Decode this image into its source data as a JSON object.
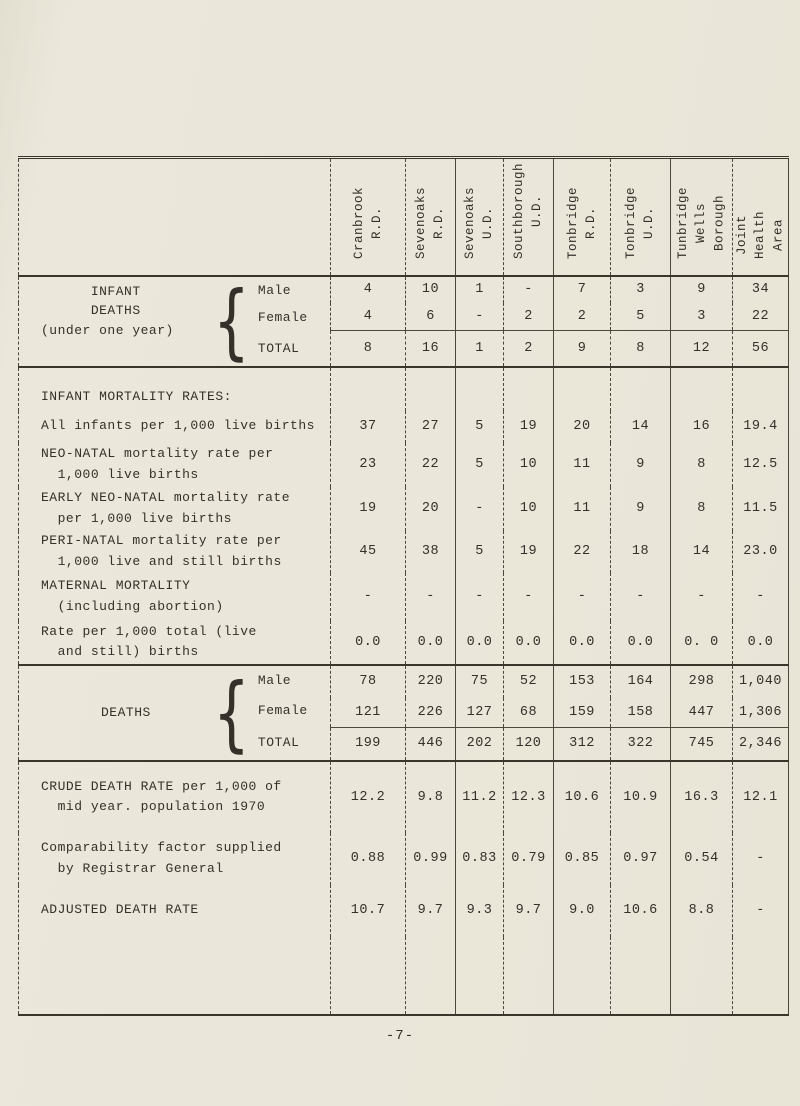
{
  "page": {
    "number": "-7-"
  },
  "table": {
    "columns": [
      "Cranbrook\nR.D.",
      "Sevenoaks\nR.D.",
      "Sevenoaks\nU.D.",
      "Southborough\nU.D.",
      "Tonbridge\nR.D.",
      "Tonbridge\nU.D.",
      "Tunbridge\nWells\nBorough",
      "Joint\nHealth\nArea"
    ],
    "infant_deaths": {
      "label": "      INFANT\n      DEATHS\n(under one year)",
      "brace": "{",
      "rows": [
        {
          "label": "Male",
          "values": [
            "4",
            "10",
            "1",
            "-",
            "7",
            "3",
            "9",
            "34"
          ]
        },
        {
          "label": "Female",
          "values": [
            "4",
            "6",
            "-",
            "2",
            "2",
            "5",
            "3",
            "22"
          ]
        },
        {
          "label": "TOTAL",
          "values": [
            "8",
            "16",
            "1",
            "2",
            "9",
            "8",
            "12",
            "56"
          ]
        }
      ]
    },
    "rates": {
      "section_label": "INFANT MORTALITY RATES:",
      "rows": [
        {
          "label": "All infants per 1,000 live births",
          "values": [
            "37",
            "27",
            "5",
            "19",
            "20",
            "14",
            "16",
            "19.4"
          ]
        },
        {
          "label": "NEO-NATAL mortality rate per\n  1,000 live births",
          "values": [
            "23",
            "22",
            "5",
            "10",
            "11",
            "9",
            "8",
            "12.5"
          ]
        },
        {
          "label": "EARLY NEO-NATAL mortality rate\n  per 1,000 live births",
          "values": [
            "19",
            "20",
            "-",
            "10",
            "11",
            "9",
            "8",
            "11.5"
          ]
        },
        {
          "label": "PERI-NATAL mortality rate per\n  1,000 live and still births",
          "values": [
            "45",
            "38",
            "5",
            "19",
            "22",
            "18",
            "14",
            "23.0"
          ]
        },
        {
          "label": "MATERNAL MORTALITY\n  (including abortion)",
          "values": [
            "-",
            "-",
            "-",
            "-",
            "-",
            "-",
            "-",
            "-"
          ]
        },
        {
          "label": "Rate per 1,000 total (live\n  and still) births",
          "values": [
            "0.0",
            "0.0",
            "0.0",
            "0.0",
            "0.0",
            "0.0",
            "0. 0",
            "0.0"
          ]
        }
      ]
    },
    "deaths": {
      "label": "DEATHS",
      "brace": "{",
      "rows": [
        {
          "label": "Male",
          "values": [
            "78",
            "220",
            "75",
            "52",
            "153",
            "164",
            "298",
            "1,040"
          ]
        },
        {
          "label": "Female",
          "values": [
            "121",
            "226",
            "127",
            "68",
            "159",
            "158",
            "447",
            "1,306"
          ]
        },
        {
          "label": "TOTAL",
          "values": [
            "199",
            "446",
            "202",
            "120",
            "312",
            "322",
            "745",
            "2,346"
          ]
        }
      ]
    },
    "summary": {
      "rows": [
        {
          "label": "CRUDE DEATH RATE per 1,000 of\n  mid year. population 1970",
          "values": [
            "12.2",
            "9.8",
            "11.2",
            "12.3",
            "10.6",
            "10.9",
            "16.3",
            "12.1"
          ]
        },
        {
          "label": "Comparability factor supplied\n  by Registrar General",
          "values": [
            "0.88",
            "0.99",
            "0.83",
            "0.79",
            "0.85",
            "0.97",
            "0.54",
            "-"
          ]
        },
        {
          "label": "ADJUSTED DEATH RATE",
          "values": [
            "10.7",
            "9.7",
            "9.3",
            "9.7",
            "9.0",
            "10.6",
            "8.8",
            "-"
          ]
        }
      ]
    }
  }
}
